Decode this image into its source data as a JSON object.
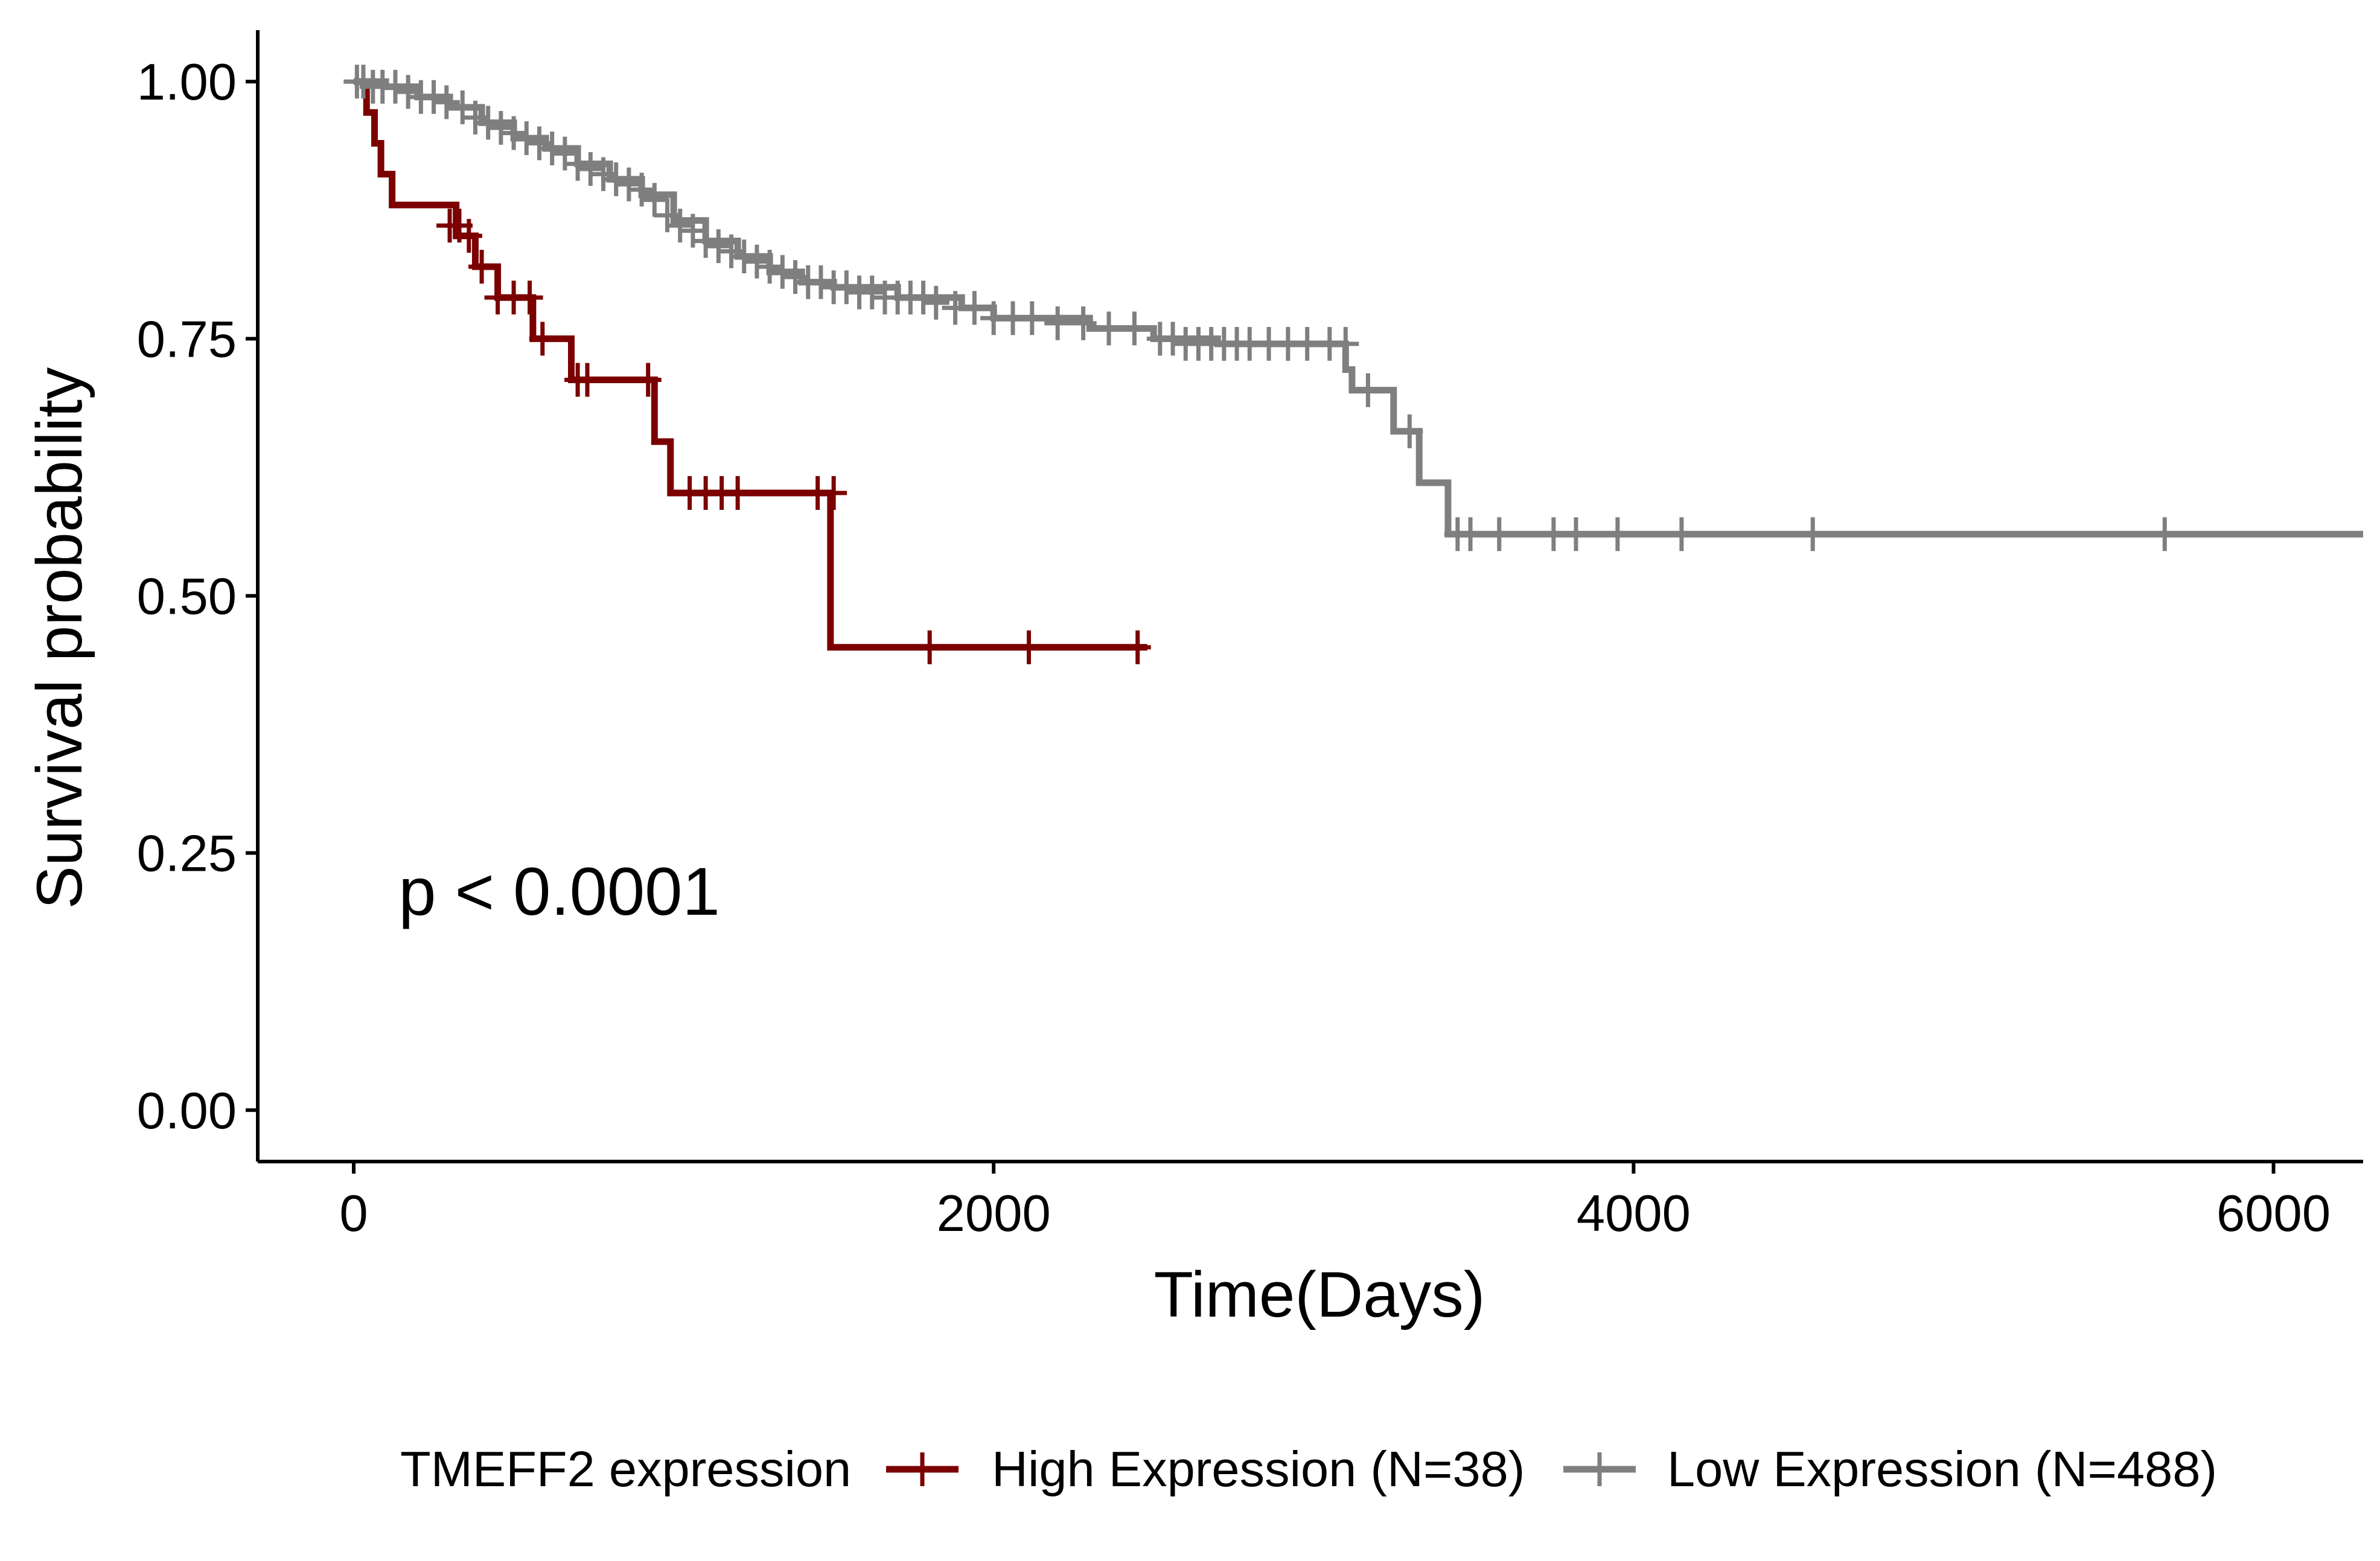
{
  "chart_data": {
    "type": "line",
    "subtype": "kaplan-meier-survival",
    "xlabel": "Time(Days)",
    "ylabel": "Survival probability",
    "xlim": [
      -300,
      6280
    ],
    "ylim": [
      -0.05,
      1.05
    ],
    "x_ticks": [
      0,
      2000,
      4000,
      6000
    ],
    "x_tick_labels": [
      "0",
      "2000",
      "4000",
      "6000"
    ],
    "y_ticks": [
      0,
      0.25,
      0.5,
      0.75,
      1.0
    ],
    "y_tick_labels": [
      "0.00",
      "0.25",
      "0.50",
      "0.75",
      "1.00"
    ],
    "grid": false,
    "annotation": {
      "text": "p < 0.0001",
      "x": 140,
      "y": 0.19
    },
    "legend": {
      "title": "TMEFF2 expression",
      "position": "bottom",
      "entries": [
        "High Expression (N=38)",
        "Low Expression (N=488)"
      ]
    },
    "series": [
      {
        "name": "High Expression (N=38)",
        "color": "#7B0000",
        "steps": [
          [
            0,
            1.0
          ],
          [
            40,
            0.97
          ],
          [
            65,
            0.94
          ],
          [
            85,
            0.91
          ],
          [
            120,
            0.88
          ],
          [
            320,
            0.85
          ],
          [
            380,
            0.82
          ],
          [
            450,
            0.79
          ],
          [
            560,
            0.75
          ],
          [
            680,
            0.71
          ],
          [
            940,
            0.65
          ],
          [
            990,
            0.6
          ],
          [
            1490,
            0.45
          ],
          [
            2480,
            0.45
          ]
        ],
        "censor_times": [
          300,
          330,
          360,
          400,
          450,
          500,
          550,
          590,
          700,
          730,
          920,
          1050,
          1100,
          1150,
          1200,
          1450,
          1500,
          1800,
          2110,
          2450
        ],
        "censor_probs": [
          0.86,
          0.86,
          0.85,
          0.82,
          0.79,
          0.79,
          0.79,
          0.75,
          0.71,
          0.71,
          0.71,
          0.6,
          0.6,
          0.6,
          0.6,
          0.6,
          0.6,
          0.45,
          0.45,
          0.45
        ]
      },
      {
        "name": "Low Expression (N=488)",
        "color": "#7F7F7F",
        "steps": [
          [
            0,
            1.0
          ],
          [
            100,
            0.995
          ],
          [
            200,
            0.985
          ],
          [
            300,
            0.975
          ],
          [
            400,
            0.96
          ],
          [
            500,
            0.945
          ],
          [
            600,
            0.935
          ],
          [
            700,
            0.92
          ],
          [
            800,
            0.905
          ],
          [
            900,
            0.89
          ],
          [
            1000,
            0.865
          ],
          [
            1100,
            0.845
          ],
          [
            1200,
            0.83
          ],
          [
            1300,
            0.815
          ],
          [
            1400,
            0.805
          ],
          [
            1500,
            0.8
          ],
          [
            1700,
            0.79
          ],
          [
            1900,
            0.78
          ],
          [
            2000,
            0.77
          ],
          [
            2300,
            0.76
          ],
          [
            2500,
            0.75
          ],
          [
            2700,
            0.745
          ],
          [
            3100,
            0.72
          ],
          [
            3120,
            0.7
          ],
          [
            3250,
            0.66
          ],
          [
            3330,
            0.61
          ],
          [
            3420,
            0.56
          ],
          [
            6280,
            0.56
          ]
        ],
        "censor_times": [
          10,
          30,
          60,
          90,
          130,
          170,
          210,
          250,
          290,
          340,
          380,
          420,
          460,
          500,
          540,
          580,
          620,
          660,
          700,
          740,
          780,
          820,
          860,
          900,
          940,
          980,
          1020,
          1060,
          1100,
          1140,
          1180,
          1220,
          1260,
          1300,
          1340,
          1380,
          1420,
          1460,
          1500,
          1540,
          1580,
          1620,
          1660,
          1700,
          1740,
          1780,
          1820,
          1880,
          1940,
          2000,
          2060,
          2120,
          2200,
          2280,
          2360,
          2440,
          2520,
          2560,
          2600,
          2640,
          2680,
          2720,
          2760,
          2800,
          2860,
          2920,
          2980,
          3050,
          3100,
          3170,
          3300,
          3450,
          3490,
          3580,
          3750,
          3820,
          3950,
          4150,
          4560,
          5660
        ],
        "censor_probs": [
          1.0,
          1.0,
          0.995,
          0.995,
          0.995,
          0.99,
          0.985,
          0.985,
          0.98,
          0.975,
          0.965,
          0.96,
          0.955,
          0.95,
          0.945,
          0.94,
          0.935,
          0.93,
          0.92,
          0.915,
          0.91,
          0.905,
          0.9,
          0.895,
          0.885,
          0.87,
          0.86,
          0.855,
          0.845,
          0.84,
          0.835,
          0.83,
          0.825,
          0.82,
          0.815,
          0.81,
          0.805,
          0.805,
          0.8,
          0.8,
          0.795,
          0.795,
          0.79,
          0.79,
          0.79,
          0.79,
          0.785,
          0.78,
          0.78,
          0.77,
          0.77,
          0.77,
          0.765,
          0.765,
          0.76,
          0.76,
          0.75,
          0.75,
          0.745,
          0.745,
          0.745,
          0.745,
          0.745,
          0.745,
          0.745,
          0.745,
          0.745,
          0.745,
          0.745,
          0.7,
          0.66,
          0.56,
          0.56,
          0.56,
          0.56,
          0.56,
          0.56,
          0.56,
          0.56,
          0.56
        ]
      }
    ]
  }
}
